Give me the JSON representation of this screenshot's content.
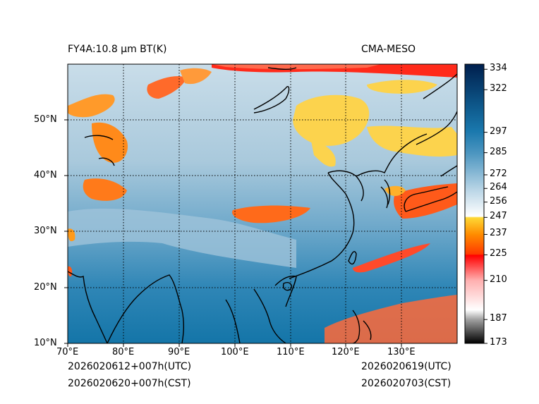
{
  "title_left": "FY4A:10.8 µm BT(K)",
  "title_right": "CMA-MESO",
  "footer": {
    "left_line1": "2026020612+007h(UTC)",
    "left_line2": "2026020620+007h(CST)",
    "right_line1": "2026020619(UTC)",
    "right_line2": "2026020703(CST)"
  },
  "map": {
    "lon_range": [
      70,
      140
    ],
    "lat_range": [
      10,
      60
    ],
    "lon_ticks": [
      {
        "value": 70,
        "label": "70°E"
      },
      {
        "value": 80,
        "label": "80°E"
      },
      {
        "value": 90,
        "label": "90°E"
      },
      {
        "value": 100,
        "label": "100°E"
      },
      {
        "value": 110,
        "label": "110°E"
      },
      {
        "value": 120,
        "label": "120°E"
      },
      {
        "value": 130,
        "label": "130°E"
      }
    ],
    "lat_ticks": [
      {
        "value": 10,
        "label": "10°N"
      },
      {
        "value": 20,
        "label": "20°N"
      },
      {
        "value": 30,
        "label": "30°N"
      },
      {
        "value": 40,
        "label": "40°N"
      },
      {
        "value": 50,
        "label": "50°N"
      }
    ]
  },
  "colorbar": {
    "min": 173,
    "max": 337,
    "ticks": [
      173,
      187,
      210,
      225,
      237,
      247,
      256,
      264,
      272,
      285,
      297,
      322,
      334
    ],
    "colors": {
      "cold": "#000000",
      "grey": "#a0a0a0",
      "white": "#ffffff",
      "red": "#ff0000",
      "orange": "#ff8c00",
      "yellow": "#fdd835",
      "pale_blue": "#dce8f0",
      "mid_blue": "#4d96c0",
      "ocean_blue": "#0f6ea0",
      "navy": "#001f4d"
    }
  }
}
